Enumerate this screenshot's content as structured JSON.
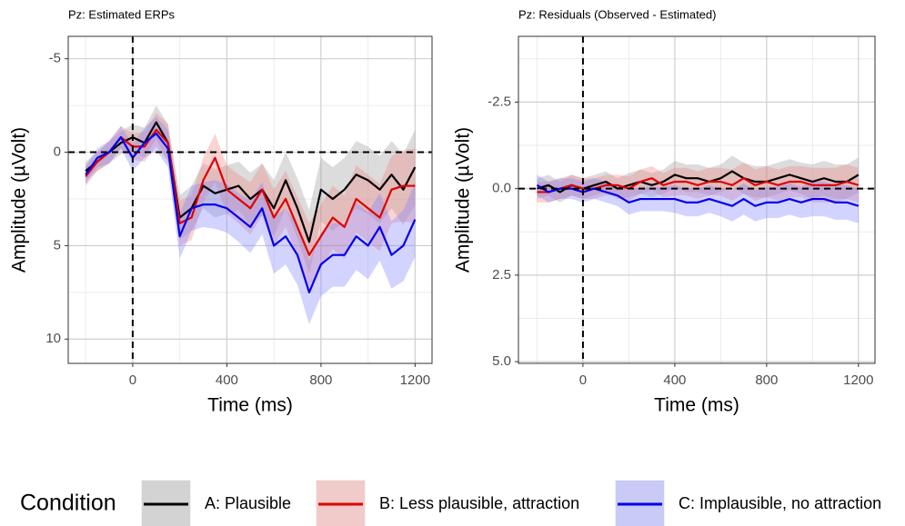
{
  "chart_data": [
    {
      "type": "line",
      "title": "Pz: Estimated ERPs",
      "xlabel": "Time (ms)",
      "ylabel": "Amplitude (µVolt)",
      "x": [
        -200,
        -150,
        -100,
        -50,
        0,
        50,
        100,
        150,
        200,
        250,
        300,
        350,
        400,
        450,
        500,
        550,
        600,
        650,
        700,
        750,
        800,
        850,
        900,
        950,
        1000,
        1050,
        1100,
        1150,
        1200
      ],
      "series": [
        {
          "name": "A: Plausible",
          "color": "#000000",
          "fill": "#9a9a9a",
          "values": [
            1.0,
            0.5,
            0.0,
            -0.5,
            -0.8,
            -0.5,
            -1.6,
            -0.5,
            3.5,
            3.0,
            1.8,
            2.2,
            2.0,
            1.8,
            2.5,
            2.0,
            3.0,
            1.5,
            3.0,
            4.8,
            2.0,
            2.5,
            2.0,
            1.2,
            1.5,
            2.0,
            1.2,
            2.0,
            0.8
          ],
          "error": [
            0.5,
            0.5,
            0.6,
            0.6,
            0.7,
            0.8,
            0.9,
            1.0,
            1.2,
            1.2,
            1.2,
            1.3,
            1.3,
            1.3,
            1.4,
            1.4,
            1.5,
            1.5,
            1.6,
            1.7,
            1.7,
            1.7,
            1.7,
            1.8,
            1.8,
            1.8,
            1.8,
            1.9,
            2.0
          ]
        },
        {
          "name": "B: Less plausible, attraction",
          "color": "#e00000",
          "fill": "#f08080",
          "values": [
            1.3,
            0.5,
            0.0,
            -0.8,
            -0.3,
            -0.3,
            -1.2,
            -0.5,
            3.8,
            3.5,
            1.5,
            0.3,
            2.0,
            2.5,
            3.0,
            2.0,
            3.5,
            2.5,
            4.0,
            5.5,
            4.5,
            3.5,
            4.0,
            2.5,
            3.0,
            3.5,
            2.0,
            1.8,
            1.8
          ],
          "error": [
            0.5,
            0.5,
            0.6,
            0.6,
            0.7,
            0.8,
            0.9,
            1.0,
            1.2,
            1.2,
            1.2,
            1.3,
            1.3,
            1.3,
            1.4,
            1.4,
            1.5,
            1.5,
            1.6,
            1.7,
            1.7,
            1.7,
            1.7,
            1.8,
            1.8,
            1.8,
            1.8,
            1.9,
            2.0
          ]
        },
        {
          "name": "C: Implausible, no attraction",
          "color": "#0000ee",
          "fill": "#8080ff",
          "values": [
            1.2,
            0.3,
            0.0,
            -0.8,
            0.3,
            -0.5,
            -1.0,
            -0.2,
            4.5,
            3.0,
            2.8,
            2.8,
            3.0,
            3.5,
            4.0,
            3.0,
            5.0,
            4.5,
            5.5,
            7.5,
            6.0,
            5.5,
            5.5,
            4.5,
            5.0,
            4.0,
            5.5,
            5.0,
            3.6
          ],
          "error": [
            0.5,
            0.5,
            0.6,
            0.6,
            0.7,
            0.8,
            0.9,
            1.0,
            1.2,
            1.2,
            1.2,
            1.3,
            1.3,
            1.3,
            1.4,
            1.4,
            1.5,
            1.5,
            1.6,
            1.7,
            1.7,
            1.7,
            1.7,
            1.8,
            1.8,
            1.8,
            1.8,
            1.9,
            2.0
          ]
        }
      ],
      "xlim": [
        -274,
        1272
      ],
      "xticks": [
        0,
        400,
        800,
        1200
      ],
      "x_minor_grid": [
        -200,
        200,
        600,
        1000
      ],
      "ylim": [
        -6.2,
        11.3
      ],
      "y_reversed": true,
      "yticks": [
        -5,
        0,
        5,
        10
      ],
      "y_minor_grid": [
        -2.5,
        2.5,
        7.5
      ],
      "hline": 0,
      "vline": 0,
      "grid": true,
      "legend": "bottom",
      "legend_title": "Condition"
    },
    {
      "type": "line",
      "title": "Pz: Residuals (Observed - Estimated)",
      "xlabel": "Time (ms)",
      "ylabel": "Amplitude (µVolt)",
      "x": [
        -200,
        -150,
        -100,
        -50,
        0,
        50,
        100,
        150,
        200,
        250,
        300,
        350,
        400,
        450,
        500,
        550,
        600,
        650,
        700,
        750,
        800,
        850,
        900,
        950,
        1000,
        1050,
        1100,
        1150,
        1200
      ],
      "series": [
        {
          "color": "#000000",
          "fill": "#9a9a9a",
          "values": [
            0.0,
            -0.1,
            0.1,
            -0.1,
            0.0,
            -0.1,
            -0.2,
            0.0,
            -0.1,
            -0.2,
            -0.1,
            -0.2,
            -0.4,
            -0.3,
            -0.3,
            -0.2,
            -0.3,
            -0.5,
            -0.3,
            -0.2,
            -0.2,
            -0.3,
            -0.4,
            -0.3,
            -0.2,
            -0.3,
            -0.2,
            -0.2,
            -0.4
          ],
          "error": [
            0.3,
            0.3,
            0.3,
            0.3,
            0.3,
            0.3,
            0.3,
            0.3,
            0.35,
            0.35,
            0.35,
            0.35,
            0.4,
            0.4,
            0.4,
            0.4,
            0.4,
            0.45,
            0.45,
            0.45,
            0.45,
            0.45,
            0.45,
            0.45,
            0.5,
            0.5,
            0.5,
            0.5,
            0.5
          ]
        },
        {
          "color": "#e00000",
          "fill": "#f08080",
          "values": [
            0.1,
            0.1,
            0.0,
            -0.1,
            0.0,
            0.0,
            -0.1,
            -0.1,
            0.0,
            -0.2,
            -0.3,
            -0.1,
            -0.2,
            -0.2,
            -0.1,
            -0.2,
            -0.2,
            -0.1,
            -0.3,
            -0.1,
            -0.2,
            -0.1,
            -0.2,
            -0.2,
            -0.1,
            -0.1,
            -0.1,
            -0.2,
            -0.1
          ],
          "error": [
            0.3,
            0.3,
            0.3,
            0.3,
            0.3,
            0.3,
            0.3,
            0.3,
            0.35,
            0.35,
            0.35,
            0.35,
            0.4,
            0.4,
            0.4,
            0.4,
            0.4,
            0.45,
            0.45,
            0.45,
            0.45,
            0.45,
            0.45,
            0.45,
            0.5,
            0.5,
            0.5,
            0.5,
            0.5
          ]
        },
        {
          "color": "#0000ee",
          "fill": "#8080ff",
          "values": [
            -0.1,
            0.1,
            0.0,
            0.0,
            0.1,
            0.0,
            0.1,
            0.2,
            0.4,
            0.3,
            0.3,
            0.3,
            0.3,
            0.4,
            0.4,
            0.3,
            0.4,
            0.5,
            0.3,
            0.5,
            0.4,
            0.4,
            0.3,
            0.4,
            0.3,
            0.3,
            0.4,
            0.4,
            0.5
          ],
          "error": [
            0.3,
            0.3,
            0.3,
            0.3,
            0.3,
            0.3,
            0.3,
            0.3,
            0.35,
            0.35,
            0.35,
            0.35,
            0.4,
            0.4,
            0.4,
            0.4,
            0.4,
            0.45,
            0.45,
            0.45,
            0.45,
            0.45,
            0.45,
            0.45,
            0.5,
            0.5,
            0.5,
            0.5,
            0.5
          ]
        }
      ],
      "xlim": [
        -281,
        1272
      ],
      "xticks": [
        0,
        400,
        800,
        1200
      ],
      "x_minor_grid": [
        -200,
        200,
        600,
        1000
      ],
      "ylim": [
        -4.4,
        5.05
      ],
      "y_reversed": true,
      "yticks": [
        -2.5,
        {
          "value": 0,
          "label": "0.0"
        },
        2.5,
        {
          "value": 5,
          "label": "5.0"
        }
      ],
      "y_minor_grid": [
        -3.75,
        -1.25,
        1.25,
        3.75
      ],
      "hline": 0,
      "vline": 0,
      "grid": true
    }
  ]
}
